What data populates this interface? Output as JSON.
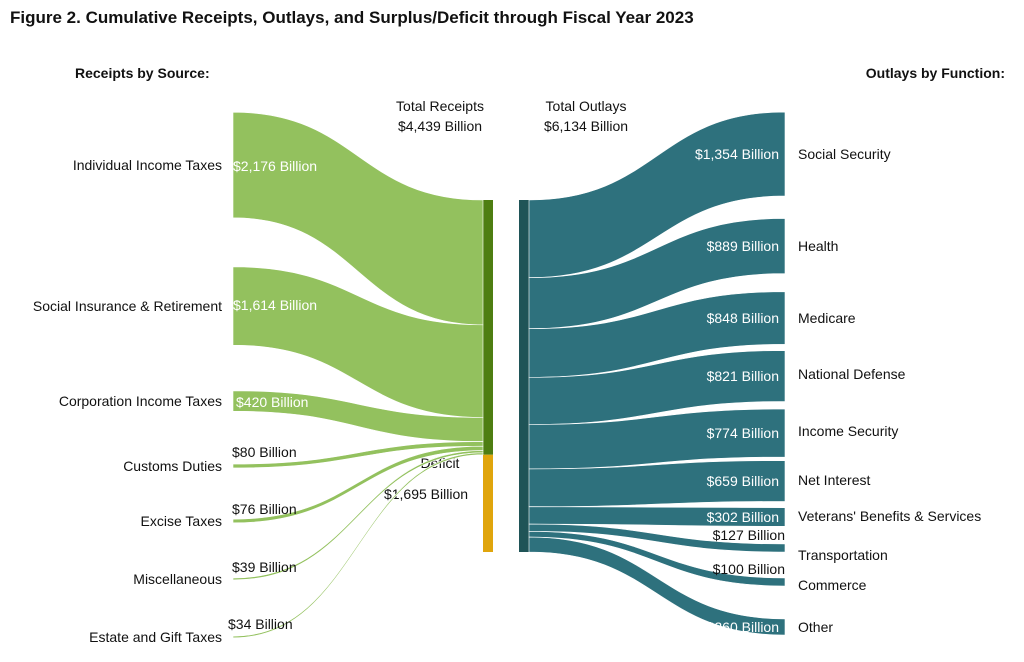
{
  "chart_data": {
    "type": "sankey",
    "title": "Figure 2. Cumulative Receipts, Outlays, and Surplus/Deficit through Fiscal Year 2023",
    "left_heading": "Receipts by Source:",
    "right_heading": "Outlays by Function:",
    "total_receipts": {
      "label": "Total Receipts",
      "value_label": "$4,439 Billion",
      "value": 4439
    },
    "total_outlays": {
      "label": "Total Outlays",
      "value_label": "$6,134 Billion",
      "value": 6134
    },
    "deficit": {
      "label": "Deficit",
      "value_label": "$1,695 Billion",
      "value": 1695
    },
    "receipts": [
      {
        "name": "Individual Income Taxes",
        "value": 2176,
        "value_label": "$2,176 Billion"
      },
      {
        "name": "Social Insurance & Retirement",
        "value": 1614,
        "value_label": "$1,614 Billion"
      },
      {
        "name": "Corporation Income Taxes",
        "value": 420,
        "value_label": "$420 Billion"
      },
      {
        "name": "Customs Duties",
        "value": 80,
        "value_label": "$80 Billion"
      },
      {
        "name": "Excise Taxes",
        "value": 76,
        "value_label": "$76 Billion"
      },
      {
        "name": "Miscellaneous",
        "value": 39,
        "value_label": "$39 Billion"
      },
      {
        "name": "Estate and Gift Taxes",
        "value": 34,
        "value_label": "$34 Billion"
      }
    ],
    "outlays": [
      {
        "name": "Social Security",
        "value": 1354,
        "value_label": "$1,354 Billion"
      },
      {
        "name": "Health",
        "value": 889,
        "value_label": "$889 Billion"
      },
      {
        "name": "Medicare",
        "value": 848,
        "value_label": "$848 Billion"
      },
      {
        "name": "National Defense",
        "value": 821,
        "value_label": "$821 Billion"
      },
      {
        "name": "Income Security",
        "value": 774,
        "value_label": "$774 Billion"
      },
      {
        "name": "Net Interest",
        "value": 659,
        "value_label": "$659 Billion"
      },
      {
        "name": "Veterans' Benefits & Services",
        "value": 302,
        "value_label": "$302 Billion"
      },
      {
        "name": "Transportation",
        "value": 127,
        "value_label": "$127 Billion"
      },
      {
        "name": "Commerce",
        "value": 100,
        "value_label": "$100 Billion"
      },
      {
        "name": "Other",
        "value": 260,
        "value_label": "$260 Billion"
      }
    ],
    "colors": {
      "receipts_flow": "#93c15e",
      "receipts_bar": "#4e7e12",
      "deficit": "#e0a50c",
      "outlays_flow": "#2e717d",
      "outlays_bar": "#1f5457"
    }
  }
}
